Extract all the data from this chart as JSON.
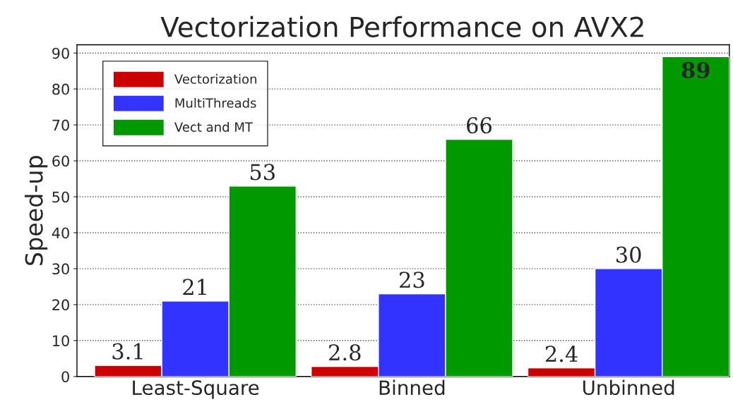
{
  "chart_data": {
    "type": "bar",
    "title": "Vectorization Performance on AVX2",
    "ylabel": "Speed-up",
    "categories": [
      "Least-Square",
      "Binned",
      "Unbinned"
    ],
    "series": [
      {
        "name": "Vectorization",
        "color": "#cc0000",
        "values": [
          3.1,
          2.8,
          2.4
        ]
      },
      {
        "name": "MultiThreads",
        "color": "#3333ff",
        "values": [
          21,
          23,
          30
        ]
      },
      {
        "name": "Vect and MT",
        "color": "#009900",
        "values": [
          53,
          66,
          89
        ]
      }
    ],
    "ylim": [
      0,
      92.3
    ],
    "yticks": [
      0,
      10,
      20,
      30,
      40,
      50,
      60,
      70,
      80,
      90
    ],
    "grid": "y",
    "legend": "top left",
    "data_labels": true
  }
}
